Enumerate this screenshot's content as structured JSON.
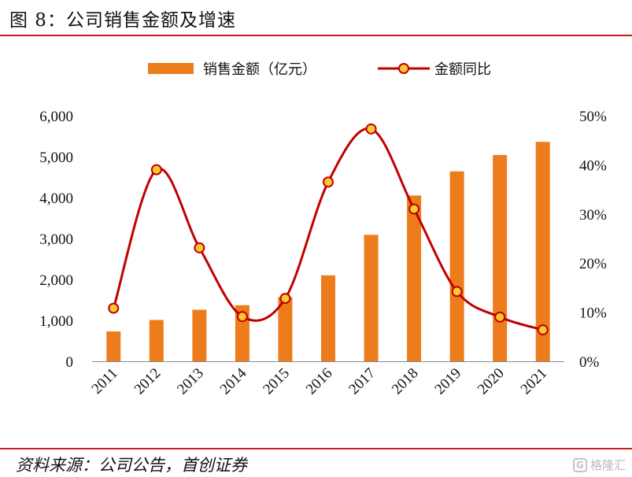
{
  "header": {
    "figure_title": "图 8：公司销售金额及增速"
  },
  "footer": {
    "source": "资料来源：公司公告，首创证券",
    "watermark": "格隆汇",
    "watermark_badge": "G"
  },
  "colors": {
    "bar": "#ed7d1c",
    "line": "#c00000",
    "marker_fill": "#f9c834",
    "rule": "#c8191c",
    "axis": "#8c8c8c"
  },
  "chart_data": {
    "type": "bar",
    "categories": [
      "2011",
      "2012",
      "2013",
      "2014",
      "2015",
      "2016",
      "2017",
      "2018",
      "2019",
      "2020",
      "2021"
    ],
    "series": [
      {
        "name": "销售金额（亿元）",
        "type": "bar",
        "axis": "left",
        "values": [
          730,
          1010,
          1260,
          1370,
          1570,
          2100,
          3090,
          4050,
          4640,
          5040,
          5360
        ]
      },
      {
        "name": "金额同比",
        "type": "line",
        "axis": "right",
        "values": [
          10.8,
          39.0,
          23.1,
          9.1,
          12.8,
          36.5,
          47.3,
          31.0,
          14.2,
          9.0,
          6.4
        ]
      }
    ],
    "y_left": {
      "ylim": [
        0,
        6000
      ],
      "ticks": [
        "0",
        "1,000",
        "2,000",
        "3,000",
        "4,000",
        "5,000",
        "6,000"
      ]
    },
    "y_right": {
      "ylim": [
        0,
        50
      ],
      "ticks": [
        "0%",
        "10%",
        "20%",
        "30%",
        "40%",
        "50%"
      ]
    },
    "grid": false,
    "legend": "top-center"
  }
}
